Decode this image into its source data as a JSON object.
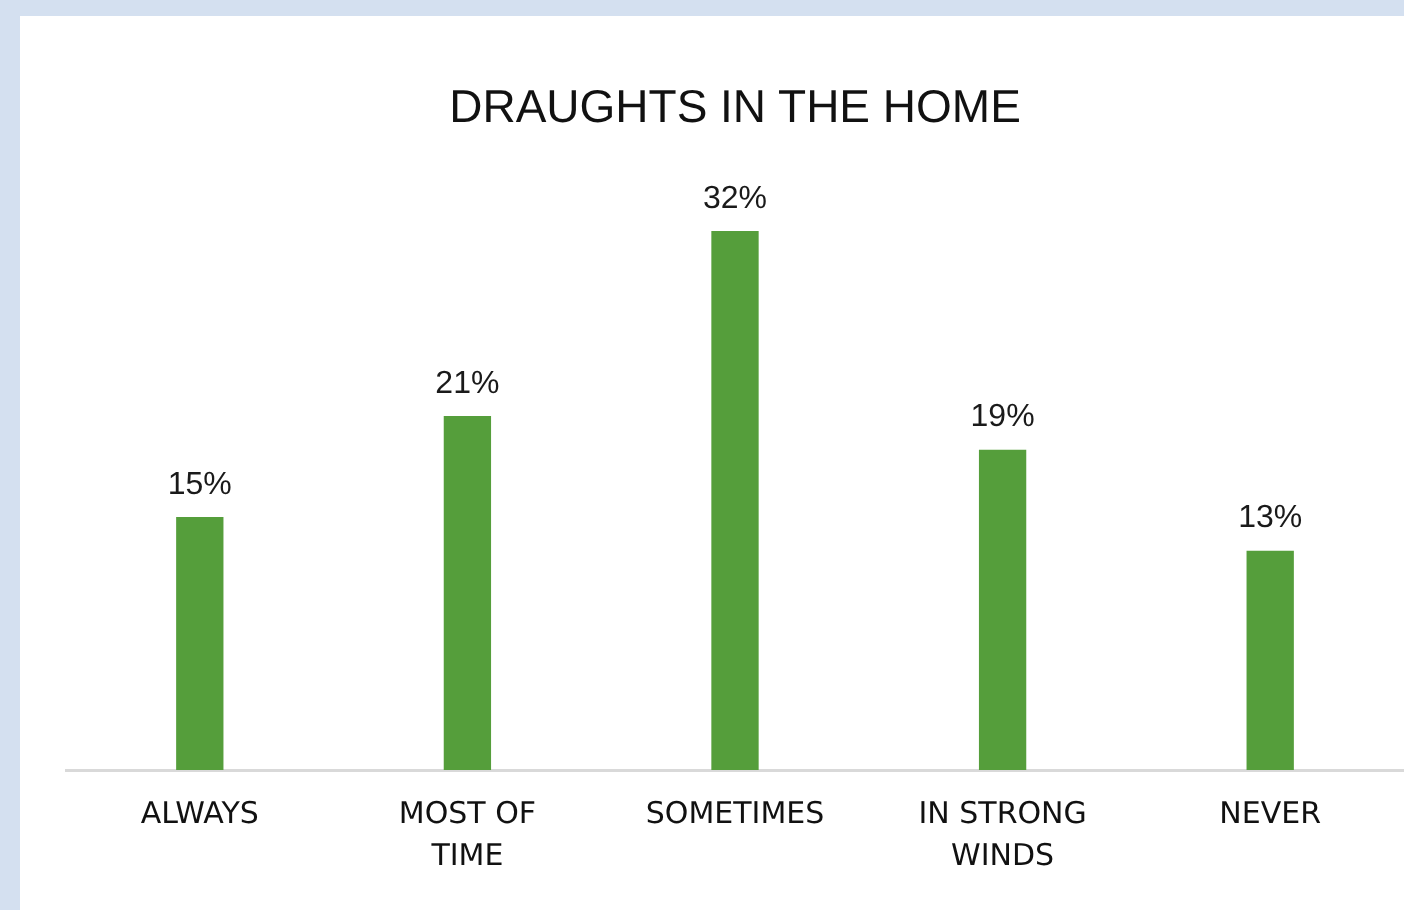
{
  "chart_data": {
    "type": "bar",
    "title": "DRAUGHTS IN THE HOME",
    "categories": [
      "ALWAYS",
      "MOST OF TIME",
      "SOMETIMES",
      "IN STRONG WINDS",
      "NEVER"
    ],
    "values": [
      15,
      21,
      32,
      19,
      13
    ],
    "color": "#559e3b",
    "value_labels": [
      "15%",
      "21%",
      "32%",
      "19%",
      "13%"
    ],
    "tick_labels": "x"
  }
}
